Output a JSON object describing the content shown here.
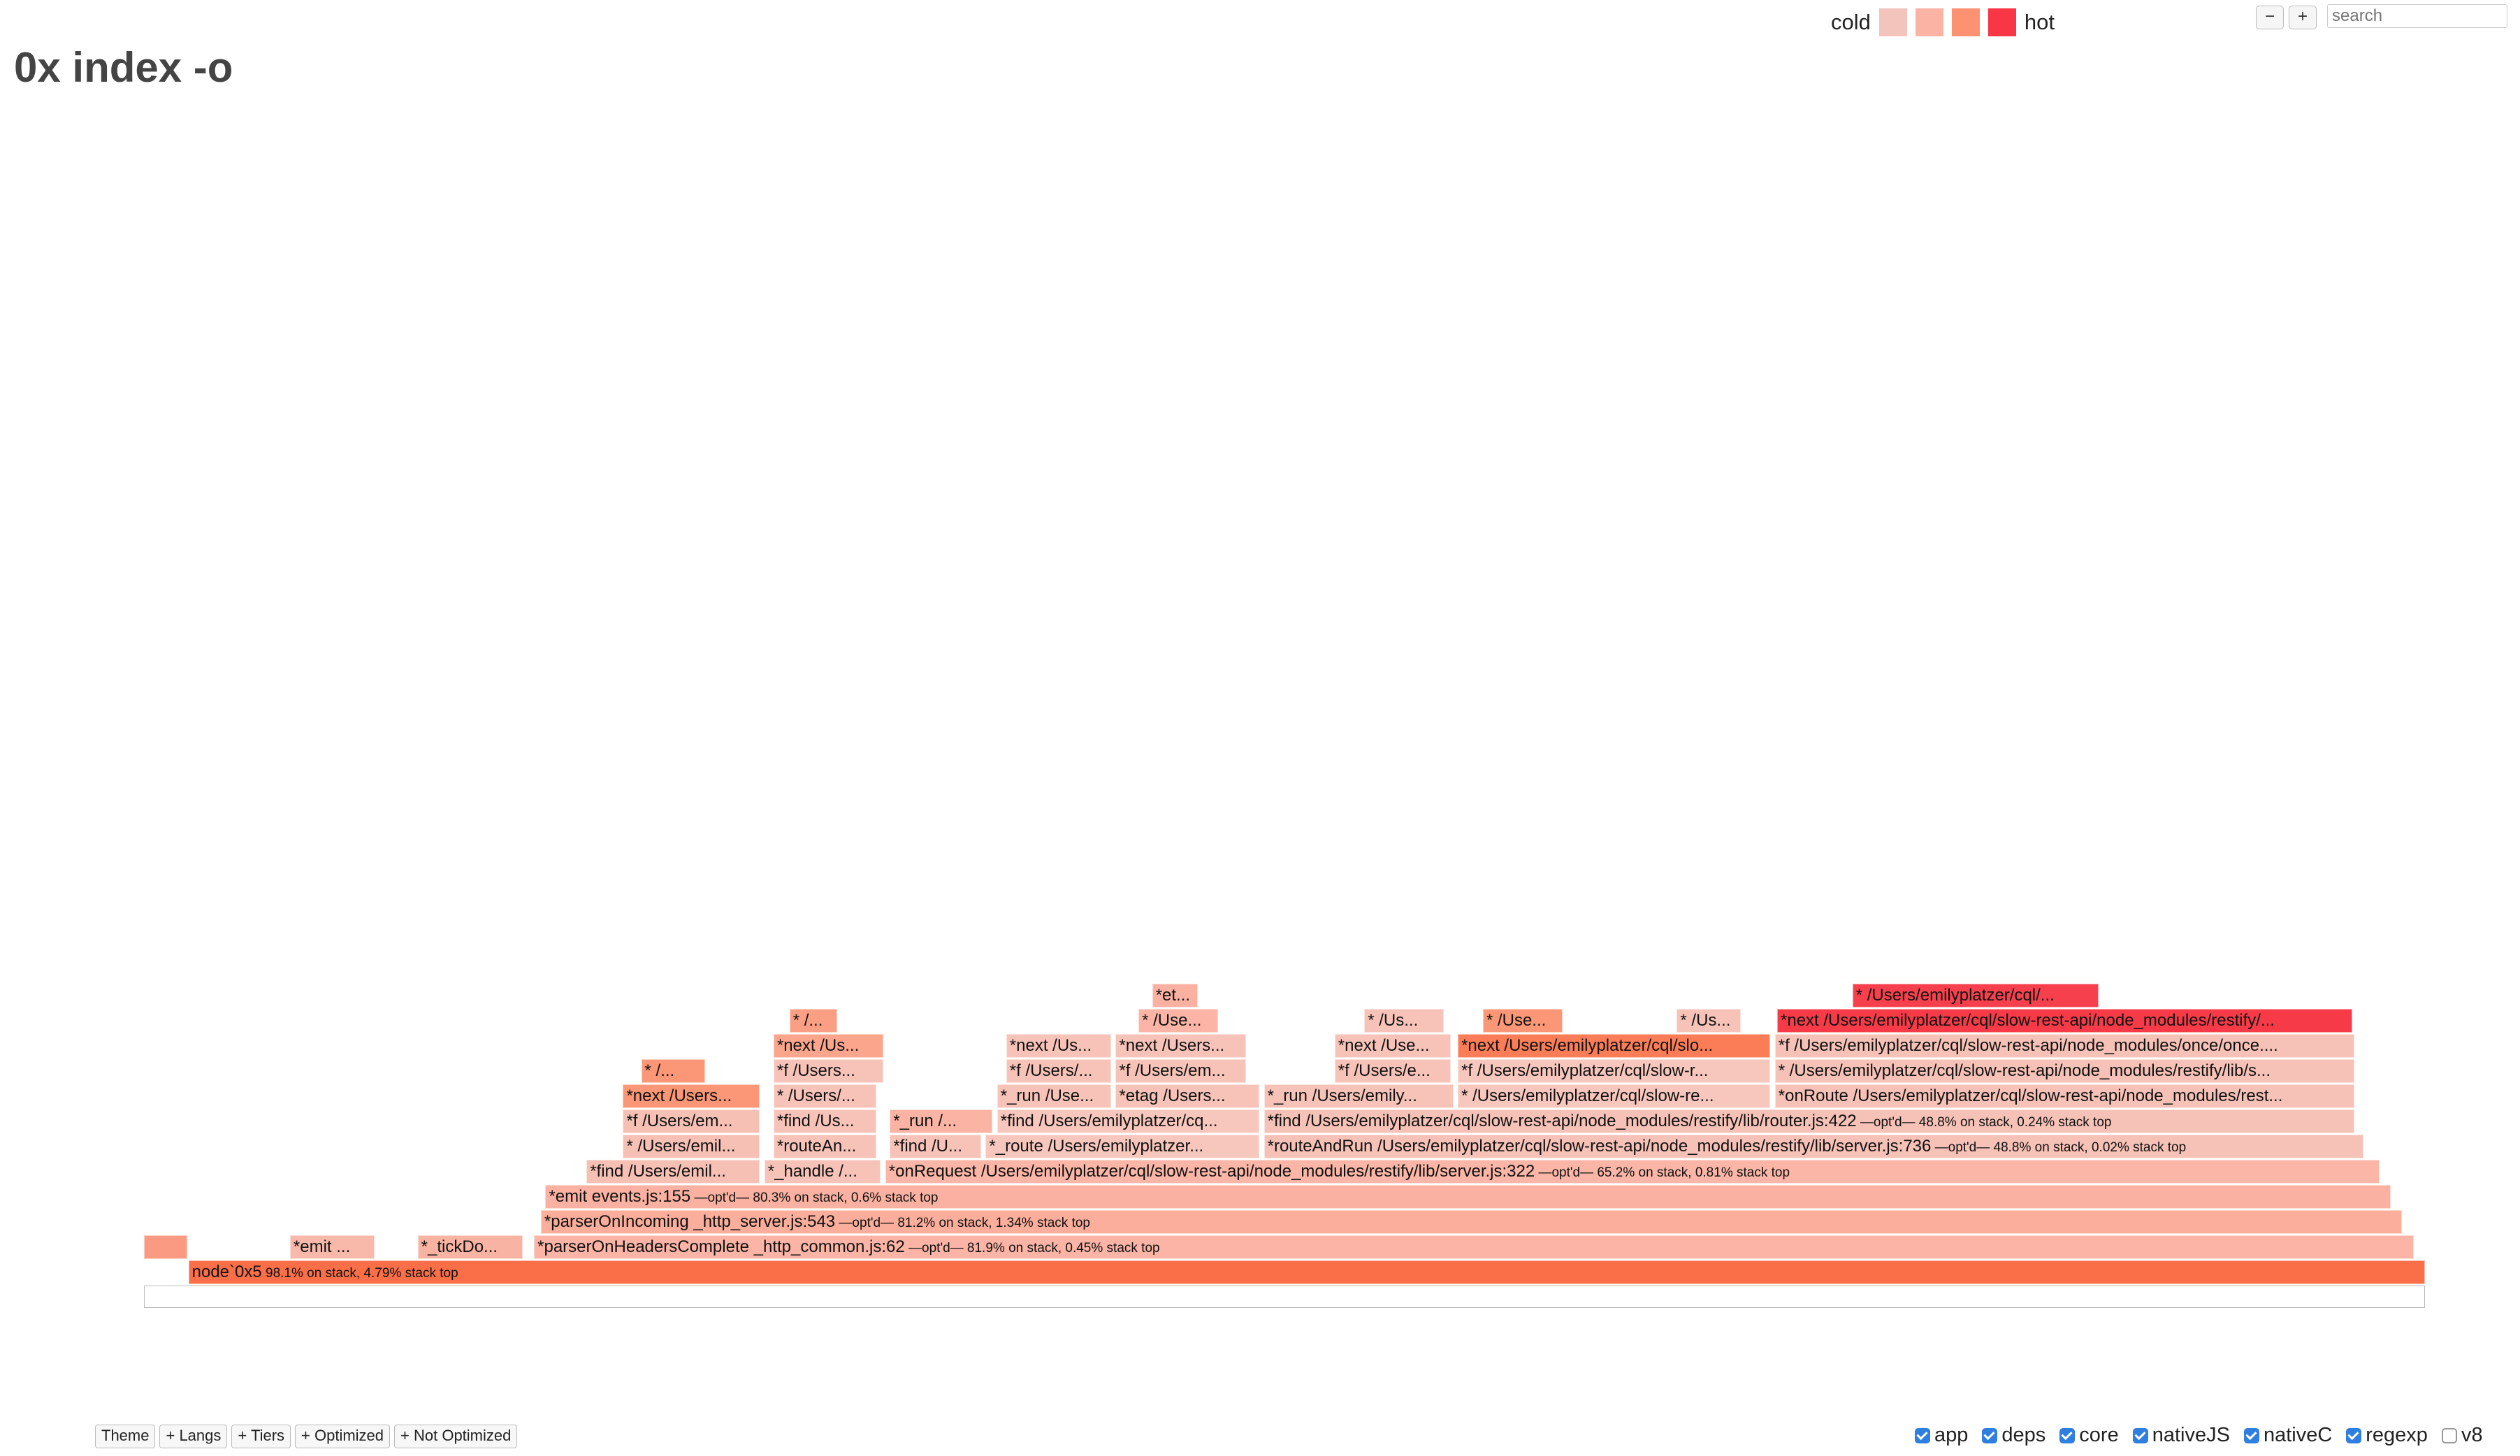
{
  "title": "0x index -o",
  "legend": {
    "cold_label": "cold",
    "hot_label": "hot",
    "swatches": [
      "#f2c4bc",
      "#fbb3a4",
      "#fd9272",
      "#f83646"
    ]
  },
  "controls": {
    "zoom_out": "−",
    "zoom_in": "+",
    "search_placeholder": "search"
  },
  "toolbar": [
    "Theme",
    "+ Langs",
    "+ Tiers",
    "+ Optimized",
    "+ Not Optimized"
  ],
  "filters": [
    {
      "label": "app",
      "checked": true
    },
    {
      "label": "deps",
      "checked": true
    },
    {
      "label": "core",
      "checked": true
    },
    {
      "label": "nativeJS",
      "checked": true
    },
    {
      "label": "nativeC",
      "checked": true
    },
    {
      "label": "regexp",
      "checked": true
    },
    {
      "label": "v8",
      "checked": false
    }
  ],
  "flamegraph": {
    "frames": [
      {
        "row": 0,
        "start": 0.0195,
        "end": 1.0,
        "label": "node`0x5",
        "meta": "98.1% on stack, 4.79% stack top",
        "color": "#fa6e48"
      },
      {
        "row": 1,
        "start": 0.0,
        "end": 0.019,
        "label": "",
        "meta": "",
        "color": "#fb9a82"
      },
      {
        "row": 1,
        "start": 0.064,
        "end": 0.101,
        "label": "*emit ...",
        "meta": "",
        "color": "#f8b9ab"
      },
      {
        "row": 1,
        "start": 0.12,
        "end": 0.166,
        "label": "*_tickDo...",
        "meta": "",
        "color": "#f9b3a2"
      },
      {
        "row": 1,
        "start": 0.171,
        "end": 0.995,
        "label": "*parserOnHeadersComplete _http_common.js:62",
        "meta": "—opt'd— 81.9% on stack, 0.45% stack top",
        "color": "#fbb4a5"
      },
      {
        "row": 2,
        "start": 0.174,
        "end": 0.99,
        "label": "*parserOnIncoming _http_server.js:543",
        "meta": "—opt'd— 81.2% on stack, 1.34% stack top",
        "color": "#fbae9c"
      },
      {
        "row": 3,
        "start": 0.176,
        "end": 0.985,
        "label": "*emit events.js:155",
        "meta": "—opt'd— 80.3% on stack, 0.6% stack top",
        "color": "#fbb1a1"
      },
      {
        "row": 4,
        "start": 0.194,
        "end": 0.27,
        "label": "*find /Users/emil...",
        "meta": "",
        "color": "#f6c0b5"
      },
      {
        "row": 4,
        "start": 0.272,
        "end": 0.323,
        "label": "*_handle /...",
        "meta": "",
        "color": "#f7c3b8"
      },
      {
        "row": 4,
        "start": 0.325,
        "end": 0.98,
        "label": "*onRequest /Users/emilyplatzer/cql/slow-rest-api/node_modules/restify/lib/server.js:322",
        "meta": "—opt'd— 65.2% on stack, 0.81% stack top",
        "color": "#fbb6a7"
      },
      {
        "row": 5,
        "start": 0.21,
        "end": 0.27,
        "label": "* /Users/emil...",
        "meta": "",
        "color": "#f6c0b5"
      },
      {
        "row": 5,
        "start": 0.276,
        "end": 0.321,
        "label": "*routeAn...",
        "meta": "",
        "color": "#f7c3b8"
      },
      {
        "row": 5,
        "start": 0.327,
        "end": 0.367,
        "label": "*find /U...",
        "meta": "",
        "color": "#f7c3b8"
      },
      {
        "row": 5,
        "start": 0.369,
        "end": 0.489,
        "label": "*_route /Users/emilyplatzer...",
        "meta": "",
        "color": "#f7c6bc"
      },
      {
        "row": 5,
        "start": 0.491,
        "end": 0.973,
        "label": "*routeAndRun /Users/emilyplatzer/cql/slow-rest-api/node_modules/restify/lib/server.js:736",
        "meta": "—opt'd— 48.8% on stack, 0.02% stack top",
        "color": "#f6c1b6"
      },
      {
        "row": 6,
        "start": 0.21,
        "end": 0.27,
        "label": "*f /Users/em...",
        "meta": "",
        "color": "#f6c0b5"
      },
      {
        "row": 6,
        "start": 0.276,
        "end": 0.321,
        "label": "*find /Us...",
        "meta": "",
        "color": "#f7c3b8"
      },
      {
        "row": 6,
        "start": 0.327,
        "end": 0.372,
        "label": "*_run /...",
        "meta": "",
        "color": "#fbb3a3"
      },
      {
        "row": 6,
        "start": 0.374,
        "end": 0.489,
        "label": "*find /Users/emilyplatzer/cq...",
        "meta": "",
        "color": "#f7c6bc"
      },
      {
        "row": 6,
        "start": 0.491,
        "end": 0.969,
        "label": "*find /Users/emilyplatzer/cql/slow-rest-api/node_modules/restify/lib/router.js:422",
        "meta": "—opt'd— 48.8% on stack, 0.24% stack top",
        "color": "#f6c1b6"
      },
      {
        "row": 7,
        "start": 0.21,
        "end": 0.27,
        "label": "*next /Users...",
        "meta": "",
        "color": "#fb9776"
      },
      {
        "row": 7,
        "start": 0.276,
        "end": 0.321,
        "label": "* /Users/...",
        "meta": "",
        "color": "#f7c3b8"
      },
      {
        "row": 7,
        "start": 0.374,
        "end": 0.424,
        "label": "*_run /Use...",
        "meta": "",
        "color": "#f7c3b8"
      },
      {
        "row": 7,
        "start": 0.426,
        "end": 0.489,
        "label": "*etag /Users...",
        "meta": "",
        "color": "#f7c3b8"
      },
      {
        "row": 7,
        "start": 0.491,
        "end": 0.574,
        "label": "*_run /Users/emily...",
        "meta": "",
        "color": "#f7c3b8"
      },
      {
        "row": 7,
        "start": 0.576,
        "end": 0.713,
        "label": "* /Users/emilyplatzer/cql/slow-re...",
        "meta": "",
        "color": "#f7c6bc"
      },
      {
        "row": 7,
        "start": 0.715,
        "end": 0.969,
        "label": "*onRoute /Users/emilyplatzer/cql/slow-rest-api/node_modules/rest...",
        "meta": "",
        "color": "#f6c1b6"
      },
      {
        "row": 8,
        "start": 0.218,
        "end": 0.246,
        "label": "* /...",
        "meta": "",
        "color": "#fb9776"
      },
      {
        "row": 8,
        "start": 0.276,
        "end": 0.324,
        "label": "*f /Users...",
        "meta": "",
        "color": "#f7c3b8"
      },
      {
        "row": 8,
        "start": 0.378,
        "end": 0.424,
        "label": "*f /Users/...",
        "meta": "",
        "color": "#f7c3b8"
      },
      {
        "row": 8,
        "start": 0.426,
        "end": 0.483,
        "label": "*f /Users/em...",
        "meta": "",
        "color": "#f7c3b8"
      },
      {
        "row": 8,
        "start": 0.522,
        "end": 0.573,
        "label": "*f /Users/e...",
        "meta": "",
        "color": "#f7c3b8"
      },
      {
        "row": 8,
        "start": 0.576,
        "end": 0.713,
        "label": "*f /Users/emilyplatzer/cql/slow-r...",
        "meta": "",
        "color": "#f7c6bc"
      },
      {
        "row": 8,
        "start": 0.715,
        "end": 0.969,
        "label": "* /Users/emilyplatzer/cql/slow-rest-api/node_modules/restify/lib/s...",
        "meta": "",
        "color": "#f6c1b6"
      },
      {
        "row": 9,
        "start": 0.276,
        "end": 0.324,
        "label": "*next /Us...",
        "meta": "",
        "color": "#fba58c"
      },
      {
        "row": 9,
        "start": 0.378,
        "end": 0.424,
        "label": "*next /Us...",
        "meta": "",
        "color": "#f7c3b8"
      },
      {
        "row": 9,
        "start": 0.426,
        "end": 0.483,
        "label": "*next /Users...",
        "meta": "",
        "color": "#f7c3b8"
      },
      {
        "row": 9,
        "start": 0.522,
        "end": 0.573,
        "label": "*next /Use...",
        "meta": "",
        "color": "#f7c3b8"
      },
      {
        "row": 9,
        "start": 0.576,
        "end": 0.713,
        "label": "*next /Users/emilyplatzer/cql/slo...",
        "meta": "",
        "color": "#fb7d58"
      },
      {
        "row": 9,
        "start": 0.715,
        "end": 0.969,
        "label": "*f /Users/emilyplatzer/cql/slow-rest-api/node_modules/once/once....",
        "meta": "",
        "color": "#f6c1b6"
      },
      {
        "row": 10,
        "start": 0.283,
        "end": 0.304,
        "label": "* /...",
        "meta": "",
        "color": "#fb9f84"
      },
      {
        "row": 10,
        "start": 0.436,
        "end": 0.471,
        "label": "* /Use...",
        "meta": "",
        "color": "#fbb4a5"
      },
      {
        "row": 10,
        "start": 0.535,
        "end": 0.57,
        "label": "* /Us...",
        "meta": "",
        "color": "#f7c3b8"
      },
      {
        "row": 10,
        "start": 0.587,
        "end": 0.622,
        "label": "* /Use...",
        "meta": "",
        "color": "#fb9776"
      },
      {
        "row": 10,
        "start": 0.672,
        "end": 0.7,
        "label": "* /Us...",
        "meta": "",
        "color": "#f7c3b8"
      },
      {
        "row": 10,
        "start": 0.716,
        "end": 0.968,
        "label": "*next /Users/emilyplatzer/cql/slow-rest-api/node_modules/restify/...",
        "meta": "",
        "color": "#f73a48"
      },
      {
        "row": 11,
        "start": 0.442,
        "end": 0.462,
        "label": "*et...",
        "meta": "",
        "color": "#fbb1a1"
      },
      {
        "row": 11,
        "start": 0.749,
        "end": 0.857,
        "label": "* /Users/emilyplatzer/cql/...",
        "meta": "",
        "color": "#f7404d"
      }
    ]
  }
}
